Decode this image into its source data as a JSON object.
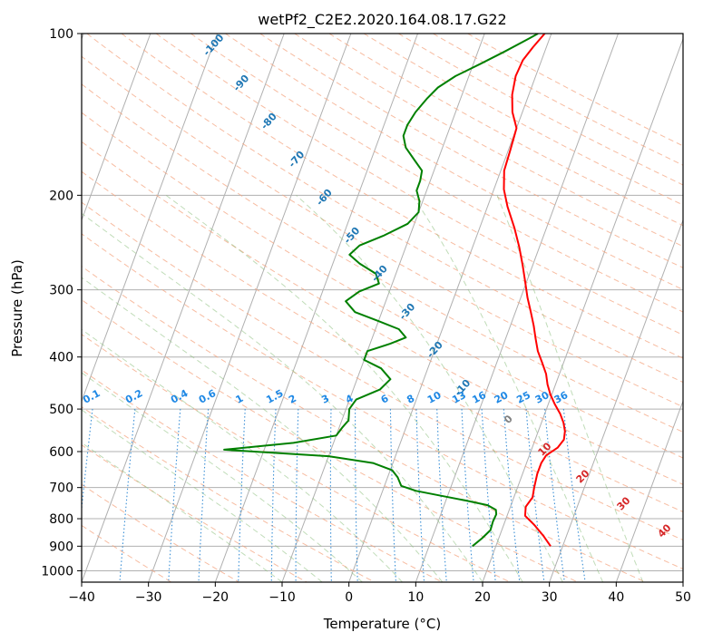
{
  "chart_data": {
    "type": "line",
    "title": "wetPf2_C2E2.2020.164.08.17.G22",
    "xlabel": "Temperature (°C)",
    "ylabel": "Pressure (hPa)",
    "xlim": [
      -40,
      50
    ],
    "ylim": [
      1050,
      100
    ],
    "y_scale": "log",
    "grid": true,
    "x_ticks": [
      -40,
      -30,
      -20,
      -10,
      0,
      10,
      20,
      30,
      40,
      50
    ],
    "y_ticks": [
      100,
      200,
      300,
      400,
      500,
      600,
      700,
      800,
      900,
      1000
    ],
    "x_tick_labels": [
      "−40",
      "−30",
      "−20",
      "−10",
      "0",
      "10",
      "20",
      "30",
      "40",
      "50"
    ],
    "y_tick_labels": [
      "100",
      "200",
      "300",
      "400",
      "500",
      "600",
      "700",
      "800",
      "900",
      "1000"
    ],
    "series": [
      {
        "color": "#ff0000",
        "points": [
          [
            28.2,
            900
          ],
          [
            26.5,
            860
          ],
          [
            24.5,
            820
          ],
          [
            22.7,
            790
          ],
          [
            22.3,
            760
          ],
          [
            22.8,
            730
          ],
          [
            22.5,
            700
          ],
          [
            22.2,
            660
          ],
          [
            22.2,
            630
          ],
          [
            22.5,
            610
          ],
          [
            23.8,
            590
          ],
          [
            24.3,
            570
          ],
          [
            24.0,
            550
          ],
          [
            23.3,
            530
          ],
          [
            22.3,
            510
          ],
          [
            21.0,
            490
          ],
          [
            19.8,
            470
          ],
          [
            18.8,
            450
          ],
          [
            18.0,
            430
          ],
          [
            16.8,
            410
          ],
          [
            15.5,
            390
          ],
          [
            14.5,
            370
          ],
          [
            13.5,
            350
          ],
          [
            12.3,
            330
          ],
          [
            11.0,
            310
          ],
          [
            9.8,
            290
          ],
          [
            8.5,
            270
          ],
          [
            7.0,
            250
          ],
          [
            5.2,
            230
          ],
          [
            3.0,
            210
          ],
          [
            1.5,
            195
          ],
          [
            0.5,
            180
          ],
          [
            0.3,
            165
          ],
          [
            0.0,
            150
          ],
          [
            -1.5,
            140
          ],
          [
            -2.5,
            130
          ],
          [
            -3.0,
            120
          ],
          [
            -2.8,
            112
          ],
          [
            -2.0,
            106
          ],
          [
            -1.0,
            100
          ]
        ]
      },
      {
        "color": "#008000",
        "points": [
          [
            16.5,
            900
          ],
          [
            17.5,
            870
          ],
          [
            18.3,
            840
          ],
          [
            18.2,
            810
          ],
          [
            18.3,
            785
          ],
          [
            18.0,
            770
          ],
          [
            16.5,
            755
          ],
          [
            13.0,
            740
          ],
          [
            9.0,
            725
          ],
          [
            5.0,
            710
          ],
          [
            2.5,
            695
          ],
          [
            1.5,
            670
          ],
          [
            0.3,
            650
          ],
          [
            -3.0,
            630
          ],
          [
            -10.0,
            612
          ],
          [
            -26.0,
            595
          ],
          [
            -16.0,
            578
          ],
          [
            -10.0,
            560
          ],
          [
            -9.5,
            540
          ],
          [
            -9.0,
            525
          ],
          [
            -9.5,
            500
          ],
          [
            -9.0,
            480
          ],
          [
            -6.0,
            460
          ],
          [
            -5.0,
            440
          ],
          [
            -7.0,
            420
          ],
          [
            -10.0,
            405
          ],
          [
            -10.0,
            390
          ],
          [
            -7.0,
            378
          ],
          [
            -5.0,
            368
          ],
          [
            -6.5,
            355
          ],
          [
            -10.0,
            343
          ],
          [
            -14.0,
            330
          ],
          [
            -16.0,
            315
          ],
          [
            -14.5,
            302
          ],
          [
            -12.0,
            292
          ],
          [
            -13.0,
            280
          ],
          [
            -16.0,
            268
          ],
          [
            -18.0,
            258
          ],
          [
            -17.0,
            248
          ],
          [
            -14.0,
            238
          ],
          [
            -11.0,
            226
          ],
          [
            -10.0,
            215
          ],
          [
            -10.5,
            205
          ],
          [
            -11.5,
            196
          ],
          [
            -11.5,
            188
          ],
          [
            -11.8,
            180
          ],
          [
            -13.5,
            172
          ],
          [
            -15.5,
            163
          ],
          [
            -16.5,
            155
          ],
          [
            -16.5,
            148
          ],
          [
            -16.0,
            140
          ],
          [
            -15.0,
            132
          ],
          [
            -14.0,
            126
          ],
          [
            -12.0,
            120
          ],
          [
            -9.0,
            114
          ],
          [
            -6.0,
            108
          ],
          [
            -3.0,
            102
          ],
          [
            -2.0,
            100
          ]
        ]
      }
    ],
    "mixing_ratio_lines": [
      0.1,
      0.2,
      0.4,
      0.6,
      1,
      1.5,
      2,
      3,
      4,
      6,
      8,
      10,
      13,
      16,
      20,
      25,
      30,
      36
    ],
    "mixing_ratio_labels": [
      "0.1",
      "0.2",
      "0.4",
      "0.6",
      "1",
      "1.5",
      "2",
      "3",
      "4",
      "6",
      "8",
      "10",
      "13",
      "16",
      "20",
      "25",
      "30",
      "36"
    ],
    "dry_adiabat_labels": [
      "-100",
      "-90",
      "-80",
      "-70",
      "-60",
      "-50",
      "-40",
      "-30",
      "-20",
      "-10"
    ],
    "moist_adiabat_labels": [
      "0",
      "10",
      "20",
      "30",
      "40"
    ]
  }
}
